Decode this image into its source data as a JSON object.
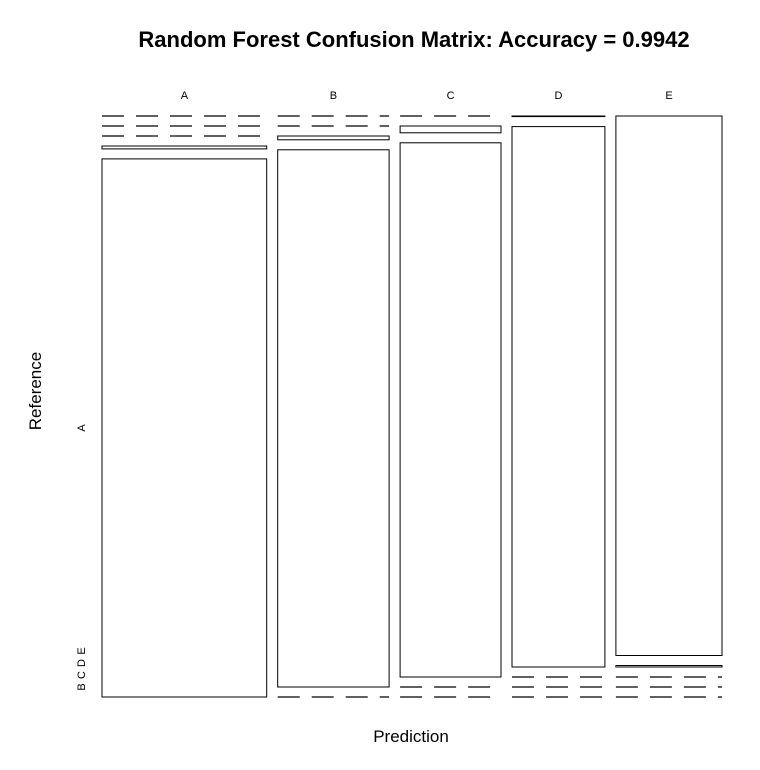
{
  "chart_data": {
    "type": "mosaic",
    "title": "Random Forest Confusion Matrix: Accuracy = 0.9942",
    "xlabel": "Prediction",
    "ylabel": "Reference",
    "prediction_classes": [
      "A",
      "B",
      "C",
      "D",
      "E"
    ],
    "reference_classes": [
      "A",
      "B",
      "C",
      "D",
      "E"
    ],
    "reference_tick_labels": [
      "A",
      "B",
      "C",
      "D",
      "E"
    ],
    "matrix": [
      [
        1674,
        0,
        0,
        0,
        0
      ],
      [
        9,
        1130,
        0,
        0,
        0
      ],
      [
        0,
        8,
        1018,
        0,
        0
      ],
      [
        0,
        0,
        13,
        948,
        3
      ],
      [
        0,
        0,
        0,
        1,
        1081
      ]
    ],
    "accuracy": 0.9942,
    "colors": {
      "cell_fill": "#ffffff",
      "stroke": "#000000"
    }
  }
}
